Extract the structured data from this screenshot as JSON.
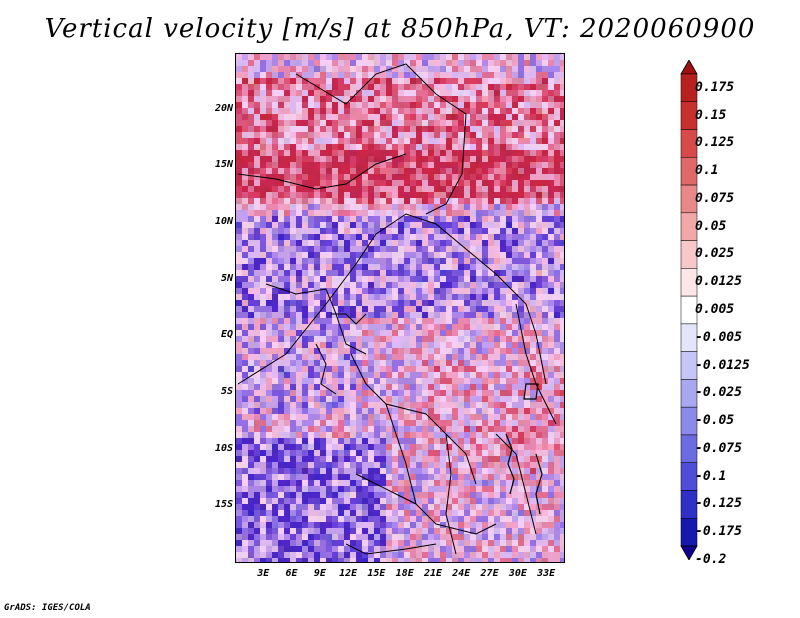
{
  "chart_data": {
    "type": "heatmap",
    "title": "Vertical velocity [m/s] at 850hPa, VT: 2020060900",
    "x_axis": {
      "ticks": [
        "3E",
        "6E",
        "9E",
        "12E",
        "15E",
        "18E",
        "21E",
        "24E",
        "27E",
        "30E",
        "33E"
      ],
      "range": [
        0,
        35
      ]
    },
    "y_axis": {
      "ticks": [
        "20N",
        "15N",
        "10N",
        "5N",
        "EQ",
        "5S",
        "10S",
        "15S"
      ],
      "range": [
        -20,
        25
      ]
    },
    "colorbar": {
      "levels": [
        "0.175",
        "0.15",
        "0.125",
        "0.1",
        "0.075",
        "0.05",
        "0.025",
        "0.0125",
        "0.005",
        "-0.005",
        "-0.0125",
        "-0.025",
        "-0.05",
        "-0.075",
        "-0.1",
        "-0.125",
        "-0.175",
        "-0.2"
      ],
      "colors": [
        "#a01010",
        "#b82020",
        "#c83030",
        "#d84a4a",
        "#e06868",
        "#e88888",
        "#f0a8a8",
        "#f8c8c8",
        "#fde6e6",
        "#ffffff",
        "#e4e4fb",
        "#c6c6f6",
        "#a8a8f0",
        "#8a8aea",
        "#6c6ce2",
        "#4e4ed8",
        "#3030c8",
        "#1818b0",
        "#100090"
      ]
    }
  },
  "footer": "GrADS: IGES/COLA"
}
